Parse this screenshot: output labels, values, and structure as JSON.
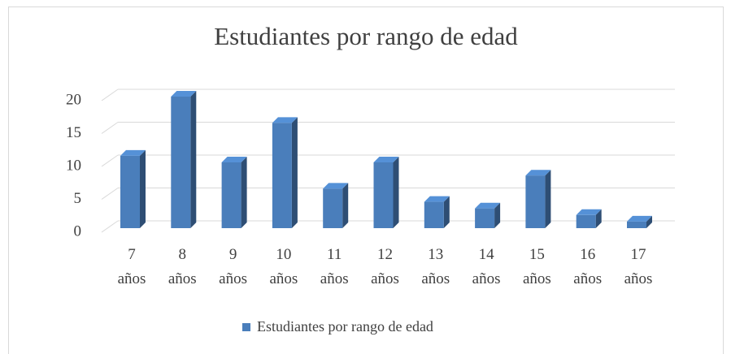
{
  "chart_data": {
    "type": "bar3d",
    "title": "Estudiantes por rango de edad",
    "categories": [
      "7 años",
      "8 años",
      "9 años",
      "10 años",
      "11 años",
      "12 años",
      "13 años",
      "14 años",
      "15 años",
      "16 años",
      "17 años"
    ],
    "series": [
      {
        "name": "Estudiantes por rango de edad",
        "color": "#4a7ebb",
        "values": [
          11,
          20,
          10,
          16,
          6,
          10,
          4,
          3,
          8,
          2,
          1
        ]
      }
    ],
    "ylim": [
      0,
      20
    ],
    "yticks": [
      0,
      5,
      10,
      15,
      20
    ],
    "grid": true,
    "legend": "bottom"
  }
}
